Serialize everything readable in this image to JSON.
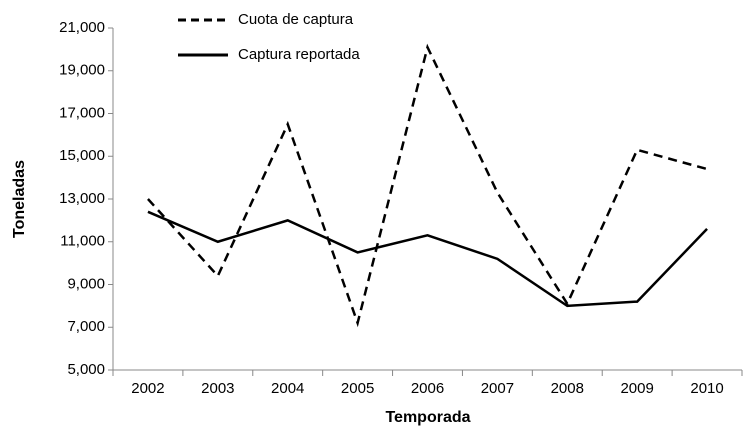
{
  "chart_data": {
    "type": "line",
    "x_label": "Temporada",
    "y_label": "Toneladas",
    "categories": [
      "2002",
      "2003",
      "2004",
      "2005",
      "2006",
      "2007",
      "2008",
      "2009",
      "2010"
    ],
    "series": [
      {
        "name": "Cuota de captura",
        "color": "#000000",
        "dashed": true,
        "values": [
          13000,
          9400,
          16500,
          7200,
          20100,
          13300,
          8100,
          15300,
          14400
        ]
      },
      {
        "name": "Captura reportada",
        "color": "#000000",
        "dashed": false,
        "values": [
          12400,
          11000,
          12000,
          10500,
          11300,
          10200,
          8000,
          8200,
          11600
        ]
      }
    ],
    "ylim": [
      5000,
      21000
    ],
    "yticks": [
      {
        "value": 5000,
        "label": "5,000"
      },
      {
        "value": 7000,
        "label": "7,000"
      },
      {
        "value": 9000,
        "label": "9,000"
      },
      {
        "value": 11000,
        "label": "11,000"
      },
      {
        "value": 13000,
        "label": "13,000"
      },
      {
        "value": 15000,
        "label": "15,000"
      },
      {
        "value": 17000,
        "label": "17,000"
      },
      {
        "value": 19000,
        "label": "19,000"
      },
      {
        "value": 21000,
        "label": "21,000"
      }
    ],
    "legend": "top-left",
    "grid": false
  }
}
